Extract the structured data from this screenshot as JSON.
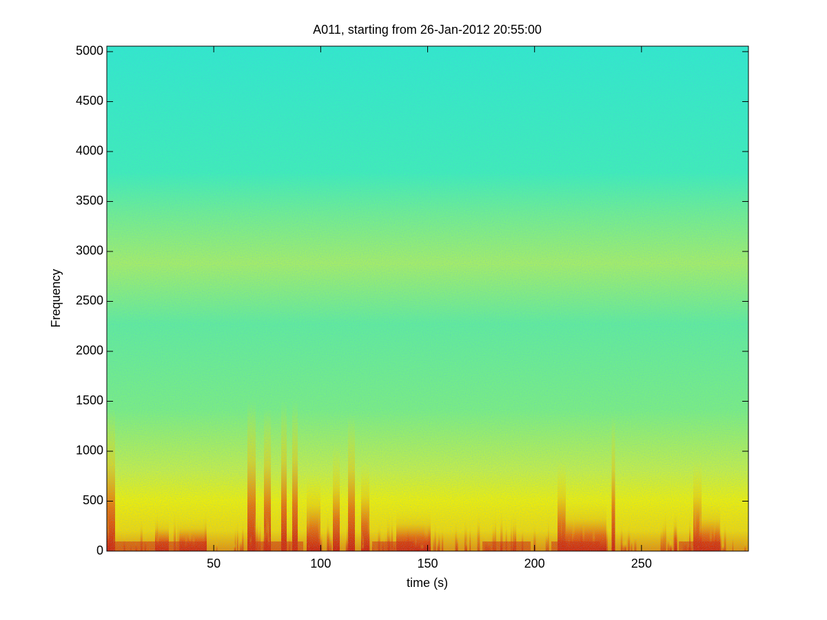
{
  "chart_data": {
    "type": "spectrogram",
    "title": "A011, starting from 26-Jan-2012 20:55:00",
    "x_label": "time (s)",
    "y_label": "Frequency",
    "xlim": [
      0,
      300
    ],
    "xticks": [
      50,
      100,
      150,
      200,
      250
    ],
    "ylim": [
      0,
      5055
    ],
    "yticks": [
      0,
      500,
      1000,
      1500,
      2000,
      2500,
      3000,
      3500,
      4000,
      4500,
      5000
    ]
  }
}
